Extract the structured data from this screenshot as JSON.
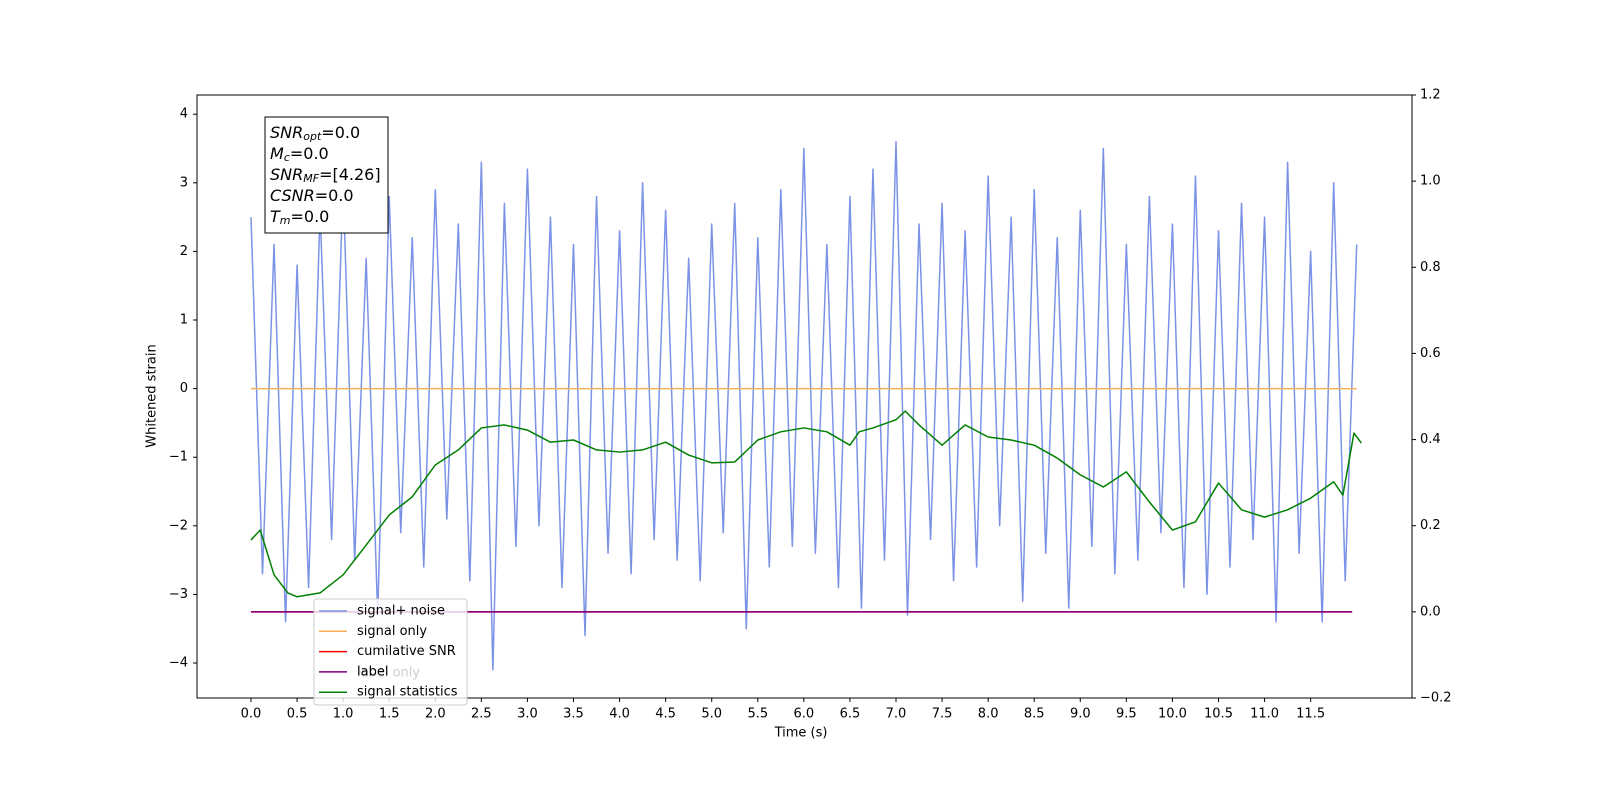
{
  "chart_data": {
    "type": "line",
    "xlabel": "Time (s)",
    "ylabel": "Whitened strain",
    "xlim": [
      -0.586,
      12.6
    ],
    "ylim": [
      -4.51,
      4.28
    ],
    "y2lim": [
      -0.2,
      1.2
    ],
    "xticks": [
      {
        "value": 0,
        "label": "0.0"
      },
      0.5,
      {
        "value": 1,
        "label": "1.0"
      },
      1.5,
      {
        "value": 2,
        "label": "2.0"
      },
      2.5,
      {
        "value": 3,
        "label": "3.0"
      },
      3.5,
      {
        "value": 4,
        "label": "4.0"
      },
      4.5,
      {
        "value": 5,
        "label": "5.0"
      },
      5.5,
      {
        "value": 6,
        "label": "6.0"
      },
      6.5,
      {
        "value": 7,
        "label": "7.0"
      },
      7.5,
      {
        "value": 8,
        "label": "8.0"
      },
      8.5,
      {
        "value": 9,
        "label": "9.0"
      },
      9.5,
      {
        "value": 10,
        "label": "10.0"
      },
      10.5,
      {
        "value": 11,
        "label": "11.0"
      },
      11.5
    ],
    "yticks": [
      {
        "value": -4,
        "label": "−4"
      },
      {
        "value": -3,
        "label": "−3"
      },
      {
        "value": -2,
        "label": "−2"
      },
      {
        "value": -1,
        "label": "−1"
      },
      0,
      1,
      2,
      3,
      4
    ],
    "y2ticks": [
      {
        "value": -0.2,
        "label": "−0.2"
      },
      {
        "value": 0,
        "label": "0.0"
      },
      0.2,
      0.4,
      0.6,
      0.8,
      {
        "value": 1,
        "label": "1.0"
      },
      1.2
    ],
    "annotations": [
      {
        "symbol": "SNR",
        "subscript": "opt",
        "value": "=0.0"
      },
      {
        "symbol": "M",
        "subscript": "c",
        "value": "=0.0"
      },
      {
        "symbol": "SNR",
        "subscript": "MF",
        "value": "=[4.26]"
      },
      {
        "symbol": "CSNR",
        "subscript": "",
        "value": "=0.0"
      },
      {
        "symbol": "T",
        "subscript": "m",
        "value": "=0.0"
      }
    ],
    "legend_hidden_text": "label only",
    "series": [
      {
        "name": "signal+ noise",
        "color": "#7b93e6",
        "x": [
          0,
          0.125,
          0.25,
          0.375,
          0.5,
          0.625,
          0.75,
          0.875,
          1,
          1.125,
          1.25,
          1.375,
          1.5,
          1.625,
          1.75,
          1.875,
          2,
          2.125,
          2.25,
          2.375,
          2.5,
          2.625,
          2.75,
          2.875,
          3,
          3.125,
          3.25,
          3.375,
          3.5,
          3.625,
          3.75,
          3.875,
          4,
          4.125,
          4.25,
          4.375,
          4.5,
          4.625,
          4.75,
          4.875,
          5,
          5.125,
          5.25,
          5.375,
          5.5,
          5.625,
          5.75,
          5.875,
          6,
          6.125,
          6.25,
          6.375,
          6.5,
          6.625,
          6.75,
          6.875,
          7,
          7.125,
          7.25,
          7.375,
          7.5,
          7.625,
          7.75,
          7.875,
          8,
          8.125,
          8.25,
          8.375,
          8.5,
          8.625,
          8.75,
          8.875,
          9,
          9.125,
          9.25,
          9.375,
          9.5,
          9.625,
          9.75,
          9.875,
          10,
          10.125,
          10.25,
          10.375,
          10.5,
          10.625,
          10.75,
          10.875,
          11,
          11.125,
          11.25,
          11.375,
          11.5,
          11.625,
          11.75,
          11.875,
          12
        ],
        "values": [
          2.5,
          -2.7,
          2.1,
          -3.4,
          1.8,
          -2.9,
          2.6,
          -2.2,
          3.0,
          -2.5,
          1.9,
          -3.3,
          2.8,
          -2.1,
          2.2,
          -2.6,
          2.9,
          -1.9,
          2.4,
          -2.8,
          3.3,
          -4.1,
          2.7,
          -2.3,
          3.2,
          -2.0,
          2.5,
          -2.9,
          2.1,
          -3.6,
          2.8,
          -2.4,
          2.3,
          -2.7,
          3.0,
          -2.2,
          2.6,
          -2.5,
          1.9,
          -2.8,
          2.4,
          -2.1,
          2.7,
          -3.5,
          2.2,
          -2.6,
          2.9,
          -2.3,
          3.5,
          -2.4,
          2.1,
          -2.9,
          2.8,
          -3.2,
          3.2,
          -2.5,
          3.6,
          -3.3,
          2.4,
          -2.2,
          2.7,
          -2.8,
          2.3,
          -2.6,
          3.1,
          -2.0,
          2.5,
          -3.1,
          2.9,
          -2.4,
          2.2,
          -3.2,
          2.6,
          -2.3,
          3.5,
          -2.7,
          2.1,
          -2.5,
          2.8,
          -2.1,
          2.4,
          -2.9,
          3.1,
          -3.0,
          2.3,
          -2.6,
          2.7,
          -2.2,
          2.5,
          -3.4,
          3.3,
          -2.4,
          2.0,
          -3.4,
          3.0,
          -2.8,
          2.1
        ]
      },
      {
        "name": "signal only",
        "color": "#f5b25a",
        "x": [
          0,
          12
        ],
        "values": [
          0,
          0
        ]
      },
      {
        "name": "cumilative SNR",
        "color": "#ff0000",
        "axis": "y2",
        "x": [
          0,
          11.95
        ],
        "values": [
          0,
          0
        ]
      },
      {
        "name": "label",
        "color": "#800080",
        "axis": "y2",
        "x": [
          0,
          11.95
        ],
        "values": [
          0,
          0
        ]
      },
      {
        "name": "signal statistics",
        "color": "#008000",
        "axis": "y2",
        "x": [
          0,
          0.1,
          0.25,
          0.4,
          0.5,
          0.75,
          1,
          1.25,
          1.5,
          1.75,
          2,
          2.25,
          2.5,
          2.75,
          3,
          3.25,
          3.5,
          3.75,
          4,
          4.25,
          4.5,
          4.75,
          5,
          5.25,
          5.5,
          5.75,
          6,
          6.25,
          6.5,
          6.6,
          6.75,
          7,
          7.1,
          7.25,
          7.5,
          7.75,
          8,
          8.25,
          8.5,
          8.75,
          9,
          9.25,
          9.5,
          9.75,
          10,
          10.25,
          10.5,
          10.75,
          11,
          11.25,
          11.5,
          11.75,
          11.85,
          11.97,
          12.05
        ],
        "values": [
          0.167,
          0.19,
          0.086,
          0.044,
          0.035,
          0.044,
          0.086,
          0.155,
          0.225,
          0.267,
          0.341,
          0.376,
          0.427,
          0.434,
          0.422,
          0.394,
          0.399,
          0.376,
          0.371,
          0.376,
          0.394,
          0.364,
          0.346,
          0.348,
          0.399,
          0.418,
          0.427,
          0.418,
          0.387,
          0.418,
          0.427,
          0.446,
          0.466,
          0.434,
          0.387,
          0.434,
          0.406,
          0.399,
          0.387,
          0.357,
          0.318,
          0.29,
          0.325,
          0.255,
          0.19,
          0.209,
          0.299,
          0.237,
          0.22,
          0.237,
          0.264,
          0.302,
          0.271,
          0.415,
          0.392
        ]
      }
    ]
  }
}
